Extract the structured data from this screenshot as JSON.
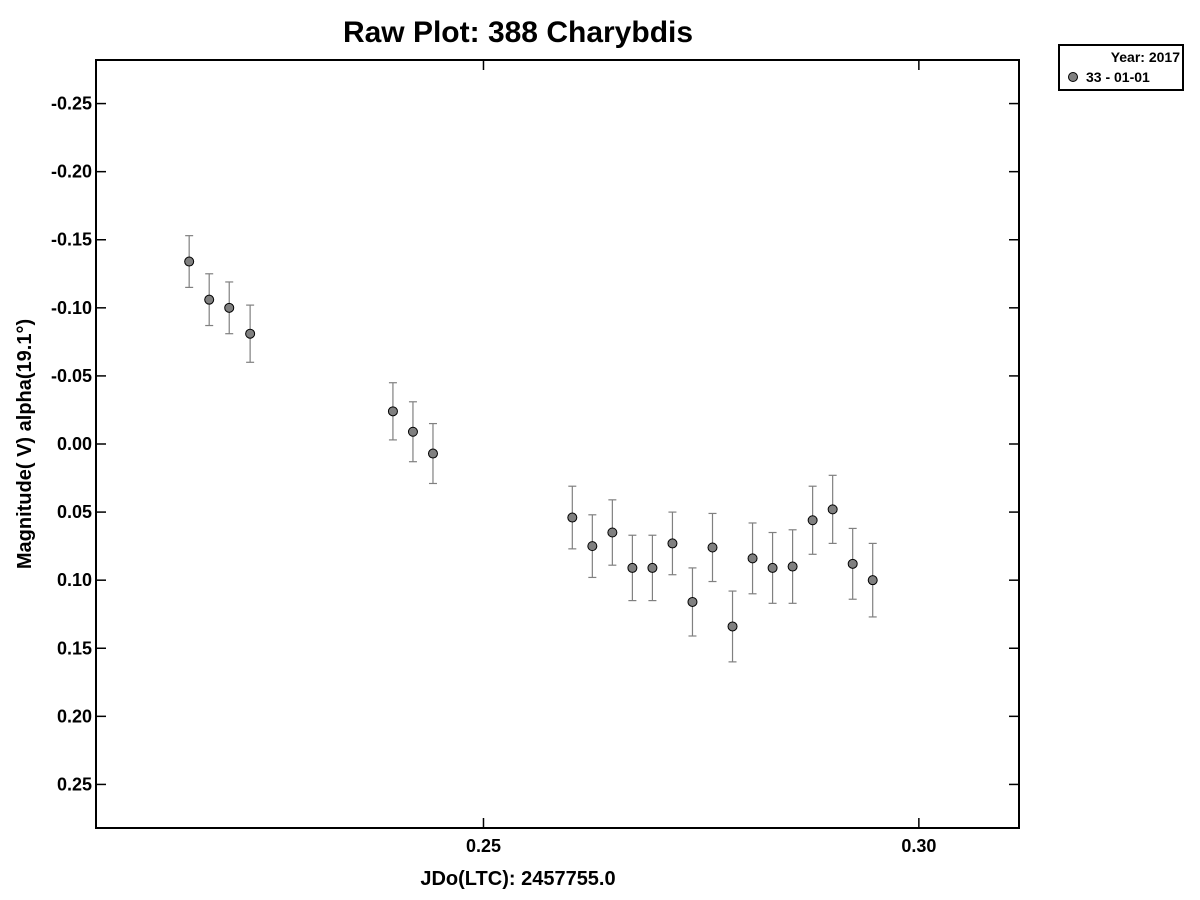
{
  "chart_data": {
    "type": "scatter",
    "title": "Raw Plot: 388 Charybdis",
    "xlabel": "JDo(LTC): 2457755.0",
    "ylabel": "Magnitude( V) alpha(19.1°)",
    "xlim": [
      0.2055,
      0.3115
    ],
    "ylim": [
      -0.282,
      0.282
    ],
    "y_inverted": true,
    "x_ticks": [
      0.25,
      0.3
    ],
    "x_tick_labels": [
      "0.25",
      "0.30"
    ],
    "y_ticks": [
      -0.25,
      -0.2,
      -0.15,
      -0.1,
      -0.05,
      0.0,
      0.05,
      0.1,
      0.15,
      0.2,
      0.25
    ],
    "y_tick_labels": [
      "-0.25",
      "-0.20",
      "-0.15",
      "-0.10",
      "-0.05",
      "0.00",
      "0.05",
      "0.10",
      "0.15",
      "0.20",
      "0.25"
    ],
    "grid": false,
    "legend": {
      "title": "Year: 2017",
      "position": "outside-top-right",
      "entries": [
        "33 - 01-01"
      ]
    },
    "marker_color": "#808080",
    "errorbar_color": "#808080",
    "series": [
      {
        "name": "33 - 01-01",
        "points": [
          {
            "x": 0.2162,
            "y": -0.134,
            "err": 0.019
          },
          {
            "x": 0.2185,
            "y": -0.106,
            "err": 0.019
          },
          {
            "x": 0.2208,
            "y": -0.1,
            "err": 0.019
          },
          {
            "x": 0.2232,
            "y": -0.081,
            "err": 0.021
          },
          {
            "x": 0.2396,
            "y": -0.024,
            "err": 0.021
          },
          {
            "x": 0.2419,
            "y": -0.009,
            "err": 0.022
          },
          {
            "x": 0.2442,
            "y": 0.007,
            "err": 0.022
          },
          {
            "x": 0.2602,
            "y": 0.054,
            "err": 0.023
          },
          {
            "x": 0.2625,
            "y": 0.075,
            "err": 0.023
          },
          {
            "x": 0.2648,
            "y": 0.065,
            "err": 0.024
          },
          {
            "x": 0.2671,
            "y": 0.091,
            "err": 0.024
          },
          {
            "x": 0.2694,
            "y": 0.091,
            "err": 0.024
          },
          {
            "x": 0.2717,
            "y": 0.073,
            "err": 0.023
          },
          {
            "x": 0.274,
            "y": 0.116,
            "err": 0.025
          },
          {
            "x": 0.2763,
            "y": 0.076,
            "err": 0.025
          },
          {
            "x": 0.2786,
            "y": 0.134,
            "err": 0.026
          },
          {
            "x": 0.2809,
            "y": 0.084,
            "err": 0.026
          },
          {
            "x": 0.2832,
            "y": 0.091,
            "err": 0.026
          },
          {
            "x": 0.2855,
            "y": 0.09,
            "err": 0.027
          },
          {
            "x": 0.2878,
            "y": 0.056,
            "err": 0.025
          },
          {
            "x": 0.2901,
            "y": 0.048,
            "err": 0.025
          },
          {
            "x": 0.2924,
            "y": 0.088,
            "err": 0.026
          },
          {
            "x": 0.2947,
            "y": 0.1,
            "err": 0.027
          }
        ]
      }
    ]
  }
}
